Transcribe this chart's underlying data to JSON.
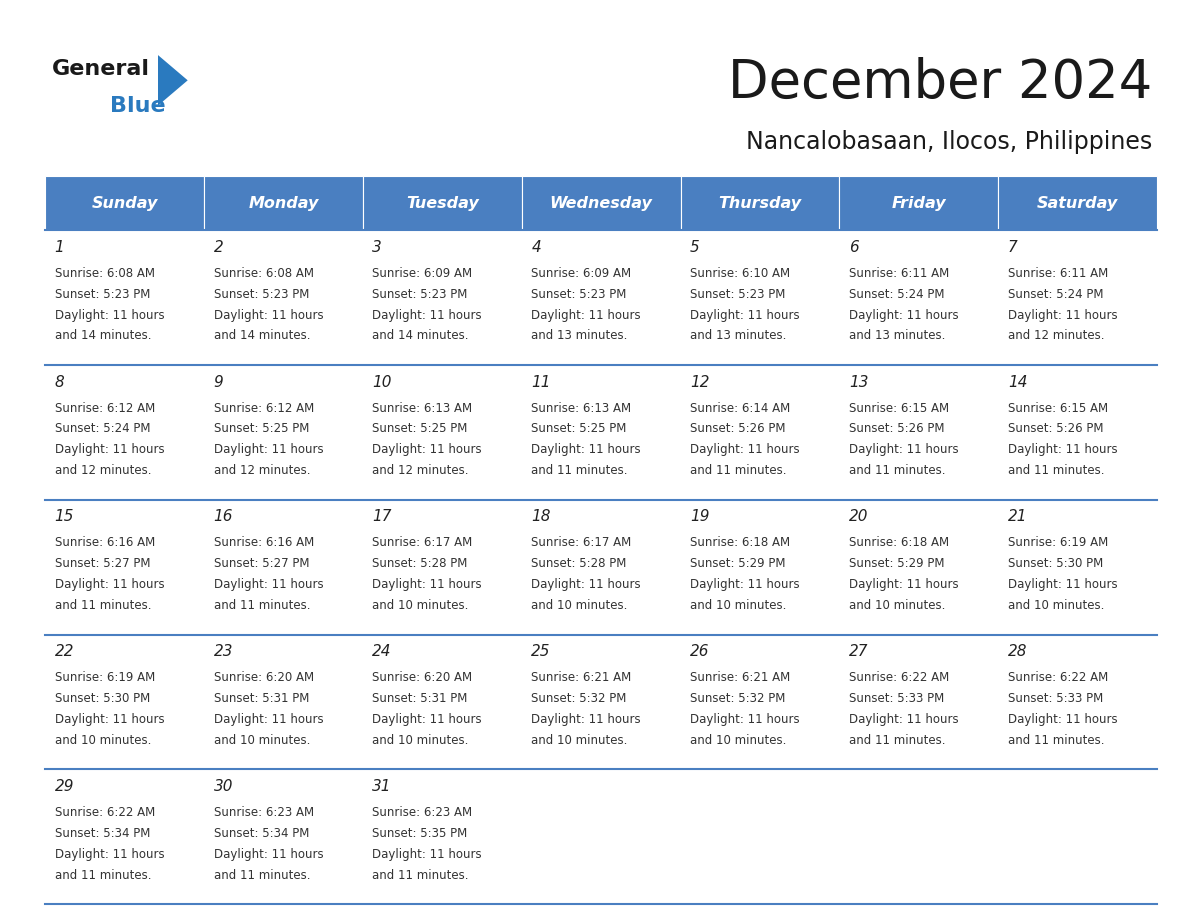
{
  "title": "December 2024",
  "subtitle": "Nancalobasaan, Ilocos, Philippines",
  "days_of_week": [
    "Sunday",
    "Monday",
    "Tuesday",
    "Wednesday",
    "Thursday",
    "Friday",
    "Saturday"
  ],
  "header_bg_color": "#4a7fc1",
  "header_text_color": "#ffffff",
  "cell_bg_color": "#ffffff",
  "border_color": "#4a7fc1",
  "day_num_color": "#222222",
  "text_color": "#333333",
  "title_color": "#1a1a1a",
  "logo_black": "#1a1a1a",
  "logo_blue": "#2a7abf",
  "calendar_data": [
    [
      {
        "day": 1,
        "sunrise": "6:08 AM",
        "sunset": "5:23 PM",
        "daylight_hours": 11,
        "daylight_minutes": 14
      },
      {
        "day": 2,
        "sunrise": "6:08 AM",
        "sunset": "5:23 PM",
        "daylight_hours": 11,
        "daylight_minutes": 14
      },
      {
        "day": 3,
        "sunrise": "6:09 AM",
        "sunset": "5:23 PM",
        "daylight_hours": 11,
        "daylight_minutes": 14
      },
      {
        "day": 4,
        "sunrise": "6:09 AM",
        "sunset": "5:23 PM",
        "daylight_hours": 11,
        "daylight_minutes": 13
      },
      {
        "day": 5,
        "sunrise": "6:10 AM",
        "sunset": "5:23 PM",
        "daylight_hours": 11,
        "daylight_minutes": 13
      },
      {
        "day": 6,
        "sunrise": "6:11 AM",
        "sunset": "5:24 PM",
        "daylight_hours": 11,
        "daylight_minutes": 13
      },
      {
        "day": 7,
        "sunrise": "6:11 AM",
        "sunset": "5:24 PM",
        "daylight_hours": 11,
        "daylight_minutes": 12
      }
    ],
    [
      {
        "day": 8,
        "sunrise": "6:12 AM",
        "sunset": "5:24 PM",
        "daylight_hours": 11,
        "daylight_minutes": 12
      },
      {
        "day": 9,
        "sunrise": "6:12 AM",
        "sunset": "5:25 PM",
        "daylight_hours": 11,
        "daylight_minutes": 12
      },
      {
        "day": 10,
        "sunrise": "6:13 AM",
        "sunset": "5:25 PM",
        "daylight_hours": 11,
        "daylight_minutes": 12
      },
      {
        "day": 11,
        "sunrise": "6:13 AM",
        "sunset": "5:25 PM",
        "daylight_hours": 11,
        "daylight_minutes": 11
      },
      {
        "day": 12,
        "sunrise": "6:14 AM",
        "sunset": "5:26 PM",
        "daylight_hours": 11,
        "daylight_minutes": 11
      },
      {
        "day": 13,
        "sunrise": "6:15 AM",
        "sunset": "5:26 PM",
        "daylight_hours": 11,
        "daylight_minutes": 11
      },
      {
        "day": 14,
        "sunrise": "6:15 AM",
        "sunset": "5:26 PM",
        "daylight_hours": 11,
        "daylight_minutes": 11
      }
    ],
    [
      {
        "day": 15,
        "sunrise": "6:16 AM",
        "sunset": "5:27 PM",
        "daylight_hours": 11,
        "daylight_minutes": 11
      },
      {
        "day": 16,
        "sunrise": "6:16 AM",
        "sunset": "5:27 PM",
        "daylight_hours": 11,
        "daylight_minutes": 11
      },
      {
        "day": 17,
        "sunrise": "6:17 AM",
        "sunset": "5:28 PM",
        "daylight_hours": 11,
        "daylight_minutes": 10
      },
      {
        "day": 18,
        "sunrise": "6:17 AM",
        "sunset": "5:28 PM",
        "daylight_hours": 11,
        "daylight_minutes": 10
      },
      {
        "day": 19,
        "sunrise": "6:18 AM",
        "sunset": "5:29 PM",
        "daylight_hours": 11,
        "daylight_minutes": 10
      },
      {
        "day": 20,
        "sunrise": "6:18 AM",
        "sunset": "5:29 PM",
        "daylight_hours": 11,
        "daylight_minutes": 10
      },
      {
        "day": 21,
        "sunrise": "6:19 AM",
        "sunset": "5:30 PM",
        "daylight_hours": 11,
        "daylight_minutes": 10
      }
    ],
    [
      {
        "day": 22,
        "sunrise": "6:19 AM",
        "sunset": "5:30 PM",
        "daylight_hours": 11,
        "daylight_minutes": 10
      },
      {
        "day": 23,
        "sunrise": "6:20 AM",
        "sunset": "5:31 PM",
        "daylight_hours": 11,
        "daylight_minutes": 10
      },
      {
        "day": 24,
        "sunrise": "6:20 AM",
        "sunset": "5:31 PM",
        "daylight_hours": 11,
        "daylight_minutes": 10
      },
      {
        "day": 25,
        "sunrise": "6:21 AM",
        "sunset": "5:32 PM",
        "daylight_hours": 11,
        "daylight_minutes": 10
      },
      {
        "day": 26,
        "sunrise": "6:21 AM",
        "sunset": "5:32 PM",
        "daylight_hours": 11,
        "daylight_minutes": 10
      },
      {
        "day": 27,
        "sunrise": "6:22 AM",
        "sunset": "5:33 PM",
        "daylight_hours": 11,
        "daylight_minutes": 11
      },
      {
        "day": 28,
        "sunrise": "6:22 AM",
        "sunset": "5:33 PM",
        "daylight_hours": 11,
        "daylight_minutes": 11
      }
    ],
    [
      {
        "day": 29,
        "sunrise": "6:22 AM",
        "sunset": "5:34 PM",
        "daylight_hours": 11,
        "daylight_minutes": 11
      },
      {
        "day": 30,
        "sunrise": "6:23 AM",
        "sunset": "5:34 PM",
        "daylight_hours": 11,
        "daylight_minutes": 11
      },
      {
        "day": 31,
        "sunrise": "6:23 AM",
        "sunset": "5:35 PM",
        "daylight_hours": 11,
        "daylight_minutes": 11
      },
      null,
      null,
      null,
      null
    ]
  ]
}
